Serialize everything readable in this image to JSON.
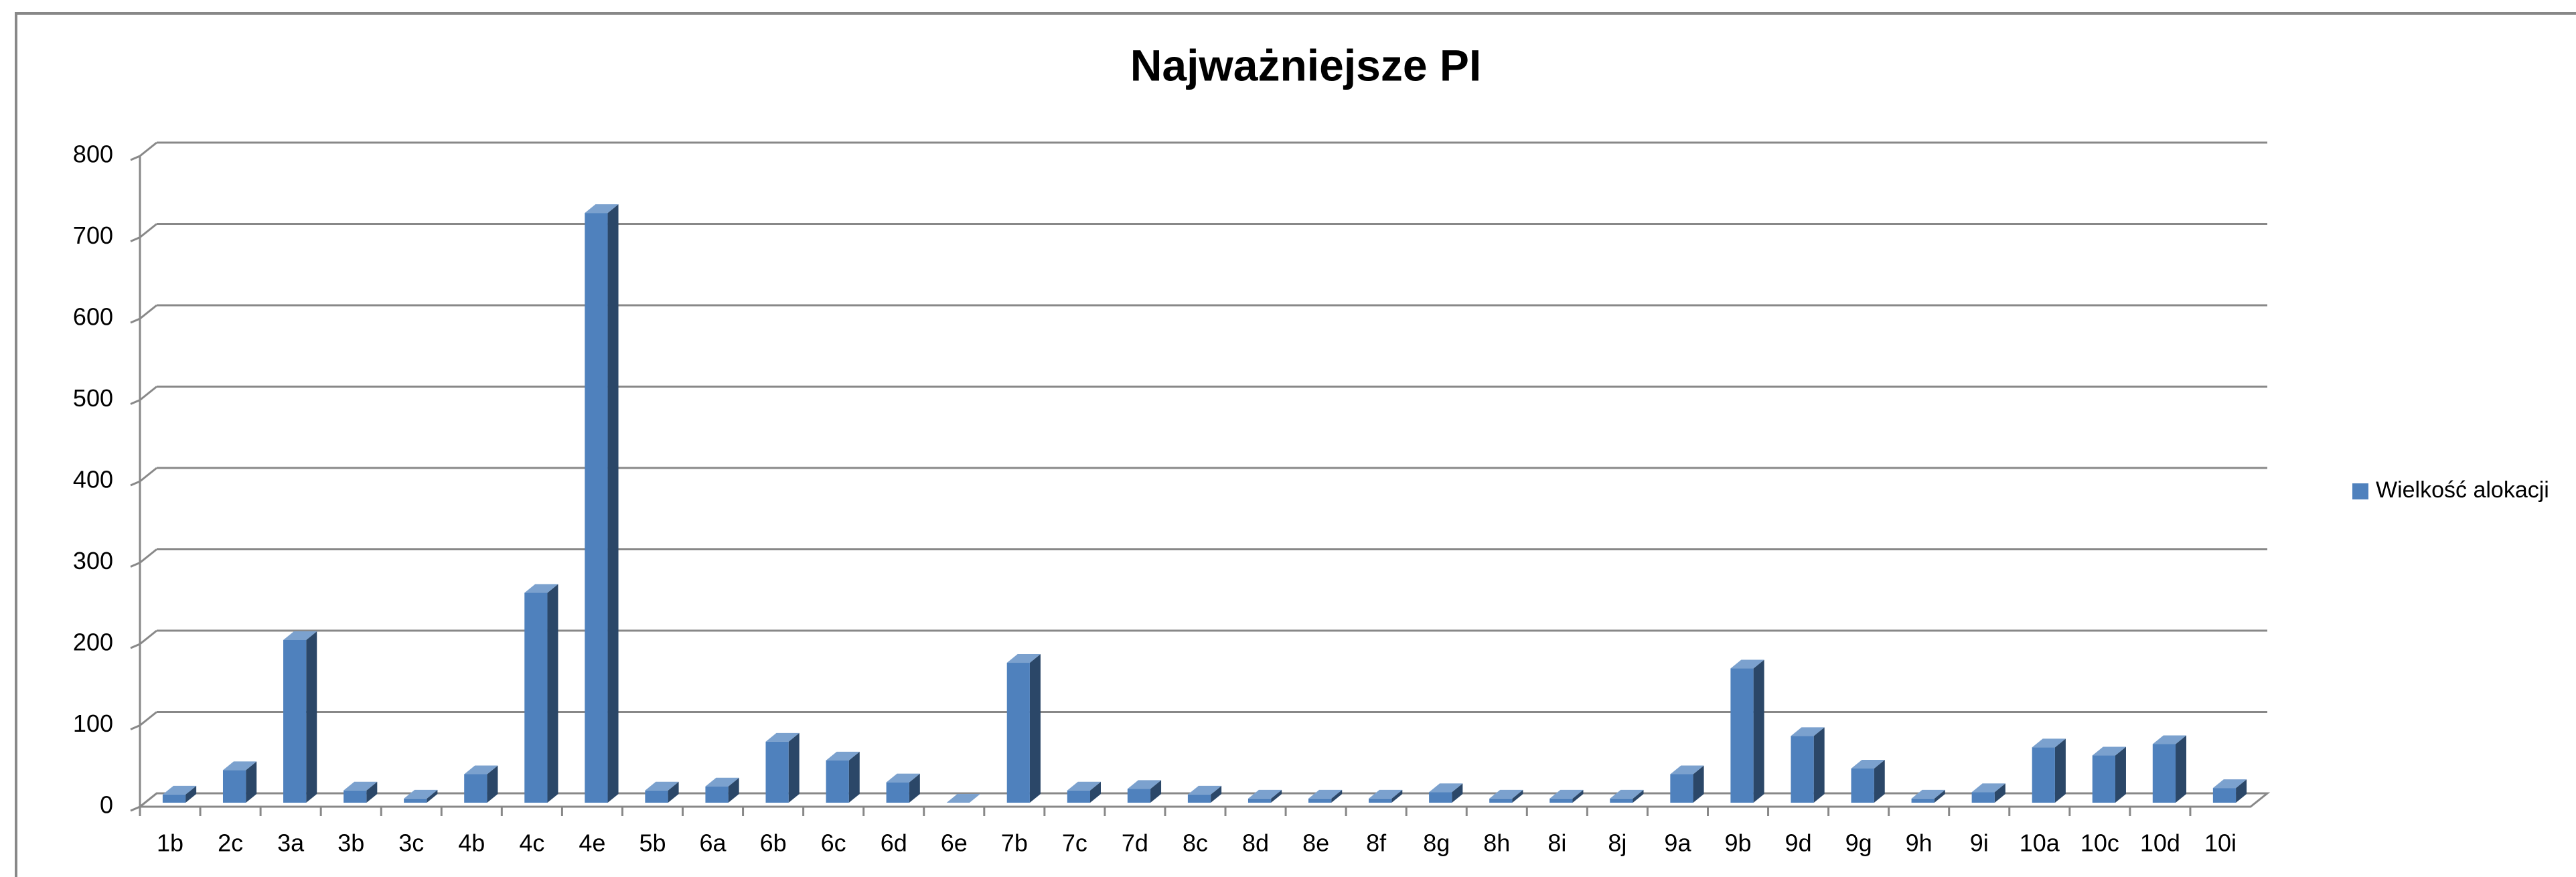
{
  "chart_data": {
    "type": "bar3d",
    "title": "Najważniejsze PI",
    "categories": [
      "1b",
      "2c",
      "3a",
      "3b",
      "3c",
      "4b",
      "4c",
      "4e",
      "5b",
      "6a",
      "6b",
      "6c",
      "6d",
      "6e",
      "7b",
      "7c",
      "7d",
      "8c",
      "8d",
      "8e",
      "8f",
      "8g",
      "8h",
      "8i",
      "8j",
      "9a",
      "9b",
      "9d",
      "9g",
      "9h",
      "9i",
      "10a",
      "10c",
      "10d",
      "10i"
    ],
    "series": [
      {
        "name": "Wielkość alokacji",
        "color": "#4f81bd",
        "values": [
          10,
          40,
          200,
          15,
          5,
          35,
          258,
          725,
          15,
          20,
          75,
          52,
          25,
          0,
          172,
          15,
          17,
          10,
          5,
          5,
          5,
          13,
          5,
          5,
          5,
          35,
          165,
          82,
          42,
          5,
          13,
          68,
          58,
          72,
          18
        ]
      }
    ],
    "ylim": [
      0,
      800
    ],
    "yticks": [
      0,
      100,
      200,
      300,
      400,
      500,
      600,
      700,
      800
    ],
    "grid": true,
    "legend": "right"
  }
}
